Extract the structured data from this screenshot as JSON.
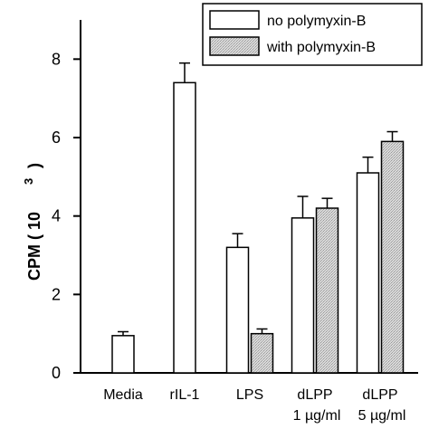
{
  "chart_data": {
    "type": "bar",
    "ylabel": "CPM (  10",
    "ylabel_exponent": "3",
    "ylabel_close": ")",
    "ylim": [
      0,
      9
    ],
    "yticks": [
      "0",
      "2",
      "4",
      "6",
      "8"
    ],
    "categories": [
      {
        "line1": "Media",
        "line2": ""
      },
      {
        "line1": "rIL-1",
        "line2": ""
      },
      {
        "line1": "LPS",
        "line2": ""
      },
      {
        "line1": "dLPP",
        "line2": "1 µg/ml"
      },
      {
        "line1": "dLPP",
        "line2": "5 µg/ml"
      }
    ],
    "series": [
      {
        "name": "no polymyxin-B",
        "fill": "#ffffff",
        "values": [
          0.95,
          7.4,
          3.2,
          3.95,
          5.1
        ],
        "errors": [
          0.1,
          0.5,
          0.35,
          0.55,
          0.4
        ]
      },
      {
        "name": "with polymyxin-B",
        "fill": "#d4d4d4",
        "values": [
          null,
          null,
          1.0,
          4.2,
          5.9
        ],
        "errors": [
          null,
          null,
          0.12,
          0.25,
          0.25
        ]
      }
    ],
    "legend_position": "top-right",
    "grid": false
  }
}
